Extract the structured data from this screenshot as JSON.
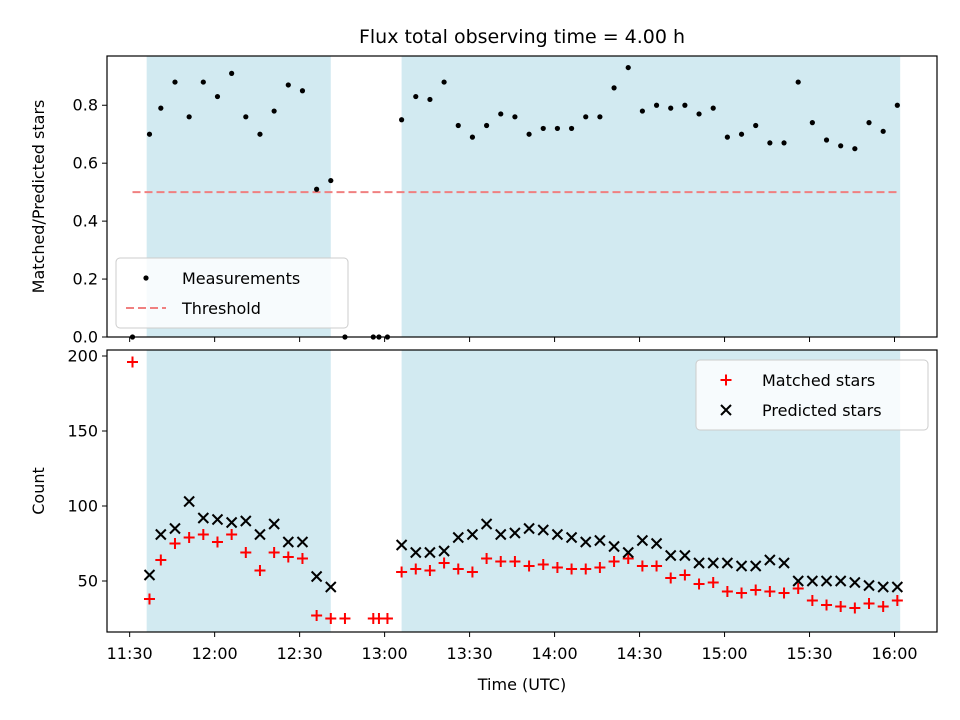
{
  "chart_data": {
    "type": "scatter",
    "title": "Flux total observing time = 4.00 h",
    "xlabel": "Time (UTC)",
    "x_ticks": [
      "11:30",
      "12:00",
      "12:30",
      "13:00",
      "13:30",
      "14:00",
      "14:30",
      "15:00",
      "15:30",
      "16:00"
    ],
    "x_range": [
      "11:22",
      "16:15"
    ],
    "shaded_intervals": [
      [
        "11:36",
        "12:41"
      ],
      [
        "13:06",
        "16:02"
      ]
    ],
    "shade_color": "#add8e6",
    "panels": [
      {
        "ylabel": "Matched/Predicted stars",
        "ylim": [
          0,
          0.97
        ],
        "y_ticks": [
          "0.0",
          "0.2",
          "0.4",
          "0.6",
          "0.8"
        ],
        "threshold": {
          "name": "Threshold",
          "value": 0.5,
          "x_range": [
            "11:31",
            "16:02"
          ],
          "color": "#f08080"
        },
        "legend": {
          "placement": "lower-left"
        },
        "series": [
          {
            "name": "Measurements",
            "marker": "dot",
            "color": "#000000",
            "points": [
              [
                "11:31",
                0.0
              ],
              [
                "11:37",
                0.7
              ],
              [
                "11:41",
                0.79
              ],
              [
                "11:46",
                0.88
              ],
              [
                "11:51",
                0.76
              ],
              [
                "11:56",
                0.88
              ],
              [
                "12:01",
                0.83
              ],
              [
                "12:06",
                0.91
              ],
              [
                "12:11",
                0.76
              ],
              [
                "12:16",
                0.7
              ],
              [
                "12:21",
                0.78
              ],
              [
                "12:26",
                0.87
              ],
              [
                "12:31",
                0.85
              ],
              [
                "12:36",
                0.51
              ],
              [
                "12:41",
                0.54
              ],
              [
                "12:46",
                0.0
              ],
              [
                "12:56",
                0.0
              ],
              [
                "12:58",
                0.0
              ],
              [
                "13:01",
                0.0
              ],
              [
                "13:06",
                0.75
              ],
              [
                "13:11",
                0.83
              ],
              [
                "13:16",
                0.82
              ],
              [
                "13:21",
                0.88
              ],
              [
                "13:26",
                0.73
              ],
              [
                "13:31",
                0.69
              ],
              [
                "13:36",
                0.73
              ],
              [
                "13:41",
                0.77
              ],
              [
                "13:46",
                0.76
              ],
              [
                "13:51",
                0.7
              ],
              [
                "13:56",
                0.72
              ],
              [
                "14:01",
                0.72
              ],
              [
                "14:06",
                0.72
              ],
              [
                "14:11",
                0.76
              ],
              [
                "14:16",
                0.76
              ],
              [
                "14:21",
                0.86
              ],
              [
                "14:26",
                0.93
              ],
              [
                "14:31",
                0.78
              ],
              [
                "14:36",
                0.8
              ],
              [
                "14:41",
                0.79
              ],
              [
                "14:46",
                0.8
              ],
              [
                "14:51",
                0.77
              ],
              [
                "14:56",
                0.79
              ],
              [
                "15:01",
                0.69
              ],
              [
                "15:06",
                0.7
              ],
              [
                "15:11",
                0.73
              ],
              [
                "15:16",
                0.67
              ],
              [
                "15:21",
                0.67
              ],
              [
                "15:26",
                0.88
              ],
              [
                "15:31",
                0.74
              ],
              [
                "15:36",
                0.68
              ],
              [
                "15:41",
                0.66
              ],
              [
                "15:46",
                0.65
              ],
              [
                "15:51",
                0.74
              ],
              [
                "15:56",
                0.71
              ],
              [
                "16:01",
                0.8
              ]
            ]
          }
        ]
      },
      {
        "ylabel": "Count",
        "ylim": [
          16,
          204
        ],
        "y_ticks": [
          "50",
          "100",
          "150",
          "200"
        ],
        "legend": {
          "placement": "upper-right"
        },
        "series": [
          {
            "name": "Matched stars",
            "marker": "plus",
            "color": "#ff0000",
            "points": [
              [
                "11:31",
                196
              ],
              [
                "11:37",
                38
              ],
              [
                "11:41",
                64
              ],
              [
                "11:46",
                75
              ],
              [
                "11:51",
                79
              ],
              [
                "11:56",
                81
              ],
              [
                "12:01",
                76
              ],
              [
                "12:06",
                81
              ],
              [
                "12:11",
                69
              ],
              [
                "12:16",
                57
              ],
              [
                "12:21",
                69
              ],
              [
                "12:26",
                66
              ],
              [
                "12:31",
                65
              ],
              [
                "12:36",
                27
              ],
              [
                "12:41",
                25
              ],
              [
                "12:46",
                25
              ],
              [
                "12:56",
                25
              ],
              [
                "12:58",
                25
              ],
              [
                "13:01",
                25
              ],
              [
                "13:06",
                56
              ],
              [
                "13:11",
                58
              ],
              [
                "13:16",
                57
              ],
              [
                "13:21",
                62
              ],
              [
                "13:26",
                58
              ],
              [
                "13:31",
                56
              ],
              [
                "13:36",
                65
              ],
              [
                "13:41",
                63
              ],
              [
                "13:46",
                63
              ],
              [
                "13:51",
                60
              ],
              [
                "13:56",
                61
              ],
              [
                "14:01",
                59
              ],
              [
                "14:06",
                58
              ],
              [
                "14:11",
                58
              ],
              [
                "14:16",
                59
              ],
              [
                "14:21",
                63
              ],
              [
                "14:26",
                65
              ],
              [
                "14:31",
                60
              ],
              [
                "14:36",
                60
              ],
              [
                "14:41",
                52
              ],
              [
                "14:46",
                54
              ],
              [
                "14:51",
                48
              ],
              [
                "14:56",
                49
              ],
              [
                "15:01",
                43
              ],
              [
                "15:06",
                42
              ],
              [
                "15:11",
                44
              ],
              [
                "15:16",
                43
              ],
              [
                "15:21",
                42
              ],
              [
                "15:26",
                45
              ],
              [
                "15:31",
                37
              ],
              [
                "15:36",
                34
              ],
              [
                "15:41",
                33
              ],
              [
                "15:46",
                32
              ],
              [
                "15:51",
                35
              ],
              [
                "15:56",
                33
              ],
              [
                "16:01",
                37
              ]
            ]
          },
          {
            "name": "Predicted stars",
            "marker": "x",
            "color": "#000000",
            "points": [
              [
                "11:37",
                54
              ],
              [
                "11:41",
                81
              ],
              [
                "11:46",
                85
              ],
              [
                "11:51",
                103
              ],
              [
                "11:56",
                92
              ],
              [
                "12:01",
                91
              ],
              [
                "12:06",
                89
              ],
              [
                "12:11",
                90
              ],
              [
                "12:16",
                81
              ],
              [
                "12:21",
                88
              ],
              [
                "12:26",
                76
              ],
              [
                "12:31",
                76
              ],
              [
                "12:36",
                53
              ],
              [
                "12:41",
                46
              ],
              [
                "13:06",
                74
              ],
              [
                "13:11",
                69
              ],
              [
                "13:16",
                69
              ],
              [
                "13:21",
                70
              ],
              [
                "13:26",
                79
              ],
              [
                "13:31",
                81
              ],
              [
                "13:36",
                88
              ],
              [
                "13:41",
                81
              ],
              [
                "13:46",
                82
              ],
              [
                "13:51",
                85
              ],
              [
                "13:56",
                84
              ],
              [
                "14:01",
                81
              ],
              [
                "14:06",
                79
              ],
              [
                "14:11",
                76
              ],
              [
                "14:16",
                77
              ],
              [
                "14:21",
                73
              ],
              [
                "14:26",
                69
              ],
              [
                "14:31",
                77
              ],
              [
                "14:36",
                75
              ],
              [
                "14:41",
                67
              ],
              [
                "14:46",
                67
              ],
              [
                "14:51",
                62
              ],
              [
                "14:56",
                62
              ],
              [
                "15:01",
                62
              ],
              [
                "15:06",
                60
              ],
              [
                "15:11",
                60
              ],
              [
                "15:16",
                64
              ],
              [
                "15:21",
                62
              ],
              [
                "15:26",
                50
              ],
              [
                "15:31",
                50
              ],
              [
                "15:36",
                50
              ],
              [
                "15:41",
                50
              ],
              [
                "15:46",
                49
              ],
              [
                "15:51",
                47
              ],
              [
                "15:56",
                46
              ],
              [
                "16:01",
                46
              ]
            ]
          }
        ]
      }
    ]
  }
}
